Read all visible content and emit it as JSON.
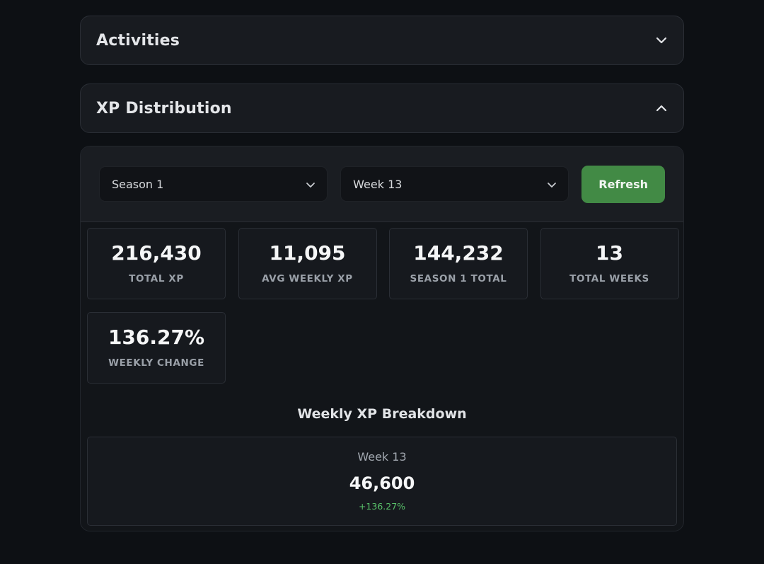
{
  "sections": {
    "activities": {
      "title": "Activities"
    },
    "xp_distribution": {
      "title": "XP Distribution"
    }
  },
  "controls": {
    "season_select": "Season 1",
    "week_select": "Week 13",
    "refresh_label": "Refresh"
  },
  "stats": [
    {
      "value": "216,430",
      "label": "TOTAL XP"
    },
    {
      "value": "11,095",
      "label": "AVG WEEKLY XP"
    },
    {
      "value": "144,232",
      "label": "SEASON 1 TOTAL"
    },
    {
      "value": "13",
      "label": "TOTAL WEEKS"
    },
    {
      "value": "136.27%",
      "label": "WEEKLY CHANGE"
    }
  ],
  "breakdown": {
    "title": "Weekly XP Breakdown",
    "week_label": "Week 13",
    "week_value": "46,600",
    "week_change": "+136.27%"
  },
  "colors": {
    "accent_green": "#428a45",
    "positive_change": "#59c26a"
  },
  "icons": {
    "activities_toggle": "chevron-down-icon",
    "xp_toggle": "chevron-up-icon",
    "select_arrow": "chevron-down-icon"
  }
}
